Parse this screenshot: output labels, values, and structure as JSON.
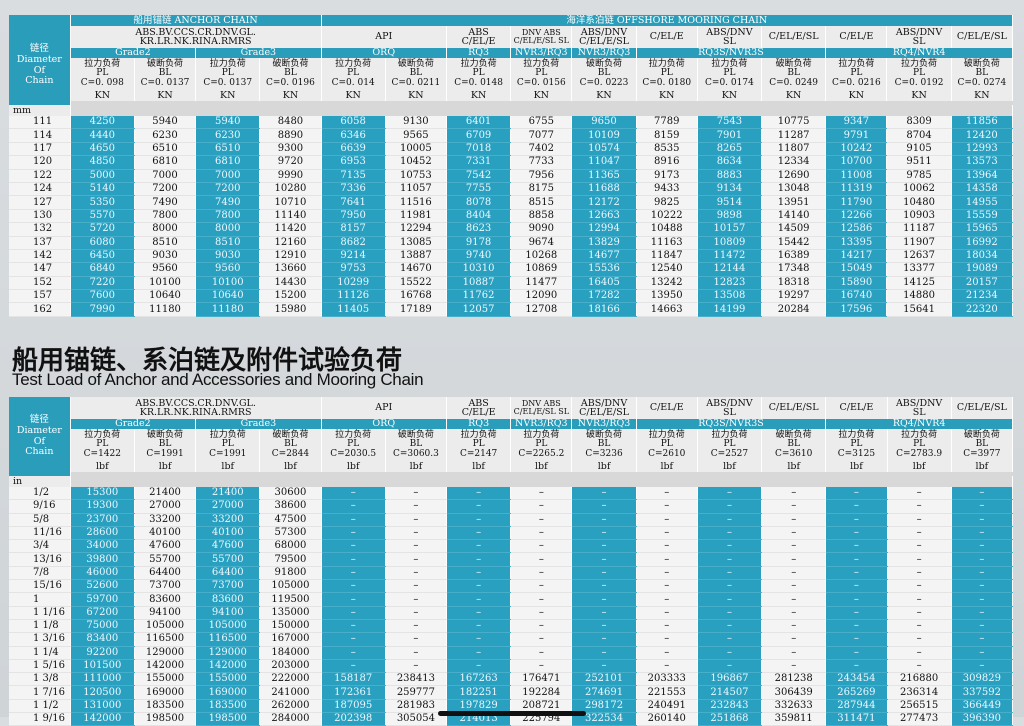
{
  "table1": {
    "section_left": "船用锚链 ANCHOR CHAIN",
    "section_right": "海洋系泊链 OFFSHORE MOORING CHAIN",
    "side_title": [
      "链径",
      "Diameter",
      "Of",
      "Chain"
    ],
    "class_headers": {
      "anchor": [
        "ABS.BV.CCS.CR.DNV.GL.",
        "KR.LR.NK.RINA.RMRS"
      ],
      "api": "API",
      "abs": [
        "ABS",
        "C/EL/E"
      ],
      "dnv_abs": [
        "DNV ABS",
        "C/EL/E/SL SL"
      ],
      "abs_dnv": [
        "ABS/DNV",
        "C/EL/E/SL"
      ],
      "cele": "C/EL/E",
      "abs_dnv_sl": [
        "ABS/DNV",
        "SL"
      ],
      "celesl": "C/EL/E/SL",
      "cele2": "C/EL/E",
      "abs_dnv_sl2": [
        "ABS/DNV",
        "SL"
      ],
      "celesl2": "C/EL/E/SL"
    },
    "grade_labels": [
      "Grade2",
      "Grade3",
      "ORQ",
      "RQ3",
      "NVR3/RQ3",
      "NVR3/RQ3",
      "RQ3S/NVR3S",
      "RQ4/NVR4"
    ],
    "load_labels": [
      [
        "拉力负荷",
        "PL",
        "C=0. 098"
      ],
      [
        "破断负荷",
        "BL",
        "C=0. 0137"
      ],
      [
        "拉力负荷",
        "PL",
        "C=0. 0137"
      ],
      [
        "破断负荷",
        "BL",
        "C=0. 0196"
      ],
      [
        "拉力负荷",
        "PL",
        "C=0. 014"
      ],
      [
        "破断负荷",
        "BL",
        "C=0. 0211"
      ],
      [
        "拉力负荷",
        "PL",
        "C=0. 0148"
      ],
      [
        "拉力负荷",
        "PL",
        "C=0. 0156"
      ],
      [
        "破断负荷",
        "BL",
        "C=0. 0223"
      ],
      [
        "拉力负荷",
        "PL",
        "C=0. 0180"
      ],
      [
        "拉力负荷",
        "PL",
        "C=0. 0174"
      ],
      [
        "破断负荷",
        "BL",
        "C=0. 0249"
      ],
      [
        "拉力负荷",
        "PL",
        "C=0. 0216"
      ],
      [
        "拉力负荷",
        "PL",
        "C=0. 0192"
      ],
      [
        "破断负荷",
        "BL",
        "C=0. 0274"
      ]
    ],
    "unit_label": "mm",
    "units": [
      "KN",
      "KN",
      "KN",
      "KN",
      "KN",
      "KN",
      "KN",
      "KN",
      "KN",
      "KN",
      "KN",
      "KN",
      "KN",
      "KN",
      "KN"
    ],
    "rows": [
      [
        "111",
        "4250",
        "5940",
        "5940",
        "8480",
        "6058",
        "9130",
        "6401",
        "6755",
        "9650",
        "7789",
        "7543",
        "10775",
        "9347",
        "8309",
        "11856"
      ],
      [
        "114",
        "4440",
        "6230",
        "6230",
        "8890",
        "6346",
        "9565",
        "6709",
        "7077",
        "10109",
        "8159",
        "7901",
        "11287",
        "9791",
        "8704",
        "12420"
      ],
      [
        "117",
        "4650",
        "6510",
        "6510",
        "9300",
        "6639",
        "10005",
        "7018",
        "7402",
        "10574",
        "8535",
        "8265",
        "11807",
        "10242",
        "9105",
        "12993"
      ],
      [
        "120",
        "4850",
        "6810",
        "6810",
        "9720",
        "6953",
        "10452",
        "7331",
        "7733",
        "11047",
        "8916",
        "8634",
        "12334",
        "10700",
        "9511",
        "13573"
      ],
      [
        "122",
        "5000",
        "7000",
        "7000",
        "9990",
        "7135",
        "10753",
        "7542",
        "7956",
        "11365",
        "9173",
        "8883",
        "12690",
        "11008",
        "9785",
        "13964"
      ],
      [
        "124",
        "5140",
        "7200",
        "7200",
        "10280",
        "7336",
        "11057",
        "7755",
        "8175",
        "11688",
        "9433",
        "9134",
        "13048",
        "11319",
        "10062",
        "14358"
      ],
      [
        "127",
        "5350",
        "7490",
        "7490",
        "10710",
        "7641",
        "11516",
        "8078",
        "8515",
        "12172",
        "9825",
        "9514",
        "13951",
        "11790",
        "10480",
        "14955"
      ],
      [
        "130",
        "5570",
        "7800",
        "7800",
        "11140",
        "7950",
        "11981",
        "8404",
        "8858",
        "12663",
        "10222",
        "9898",
        "14140",
        "12266",
        "10903",
        "15559"
      ],
      [
        "132",
        "5720",
        "8000",
        "8000",
        "11420",
        "8157",
        "12294",
        "8623",
        "9090",
        "12994",
        "10488",
        "10157",
        "14509",
        "12586",
        "11187",
        "15965"
      ],
      [
        "137",
        "6080",
        "8510",
        "8510",
        "12160",
        "8682",
        "13085",
        "9178",
        "9674",
        "13829",
        "11163",
        "10809",
        "15442",
        "13395",
        "11907",
        "16992"
      ],
      [
        "142",
        "6450",
        "9030",
        "9030",
        "12910",
        "9214",
        "13887",
        "9740",
        "10268",
        "14677",
        "11847",
        "11472",
        "16389",
        "14217",
        "12637",
        "18034"
      ],
      [
        "147",
        "6840",
        "9560",
        "9560",
        "13660",
        "9753",
        "14670",
        "10310",
        "10869",
        "15536",
        "12540",
        "12144",
        "17348",
        "15049",
        "13377",
        "19089"
      ],
      [
        "152",
        "7220",
        "10100",
        "10100",
        "14430",
        "10299",
        "15522",
        "10887",
        "11477",
        "16405",
        "13242",
        "12823",
        "18318",
        "15890",
        "14125",
        "20157"
      ],
      [
        "157",
        "7600",
        "10640",
        "10640",
        "15200",
        "11126",
        "16768",
        "11762",
        "12090",
        "17282",
        "13950",
        "13508",
        "19297",
        "16740",
        "14880",
        "21234"
      ],
      [
        "162",
        "7990",
        "11180",
        "11180",
        "15980",
        "11405",
        "17189",
        "12057",
        "12708",
        "18166",
        "14663",
        "14199",
        "20284",
        "17596",
        "15641",
        "22320"
      ]
    ]
  },
  "heading": {
    "chinese": "船用锚链、系泊链及附件试验负荷",
    "english": "Test Load of Anchor and Accessories and Mooring Chain"
  },
  "table2": {
    "side_title": [
      "链径",
      "Diameter",
      "Of",
      "Chain"
    ],
    "class_headers": {
      "anchor": [
        "ABS.BV.CCS.CR.DNV.GL.",
        "KR.LR.NK.RINA.RMRS"
      ],
      "api": "API",
      "abs": [
        "ABS",
        "C/EL/E"
      ],
      "dnv_abs": [
        "DNV ABS",
        "C/EL/E/SL SL"
      ],
      "abs_dnv": [
        "ABS/DNV",
        "C/EL/E/SL"
      ],
      "cele": "C/EL/E",
      "abs_dnv_sl": [
        "ABS/DNV",
        "SL"
      ],
      "celesl": "C/EL/E/SL",
      "cele2": "C/EL/E",
      "abs_dnv_sl2": [
        "ABS/DNV",
        "SL"
      ],
      "celesl2": "C/EL/E/SL"
    },
    "grade_labels": [
      "Grade2",
      "Grade3",
      "ORQ",
      "RQ3",
      "NVR3/RQ3",
      "NVR3/RQ3",
      "RQ3S/NVR3S",
      "RQ4/NVR4"
    ],
    "load_labels": [
      [
        "拉力负荷",
        "PL",
        "C=1422"
      ],
      [
        "破断负荷",
        "BL",
        "C=1991"
      ],
      [
        "拉力负荷",
        "PL",
        "C=1991"
      ],
      [
        "破断负荷",
        "BL",
        "C=2844"
      ],
      [
        "拉力负荷",
        "PL",
        "C=2030.5"
      ],
      [
        "破断负荷",
        "BL",
        "C=3060.3"
      ],
      [
        "拉力负荷",
        "PL",
        "C=2147"
      ],
      [
        "拉力负荷",
        "PL",
        "C=2265.2"
      ],
      [
        "破断负荷",
        "BL",
        "C=3236"
      ],
      [
        "拉力负荷",
        "PL",
        "C=2610"
      ],
      [
        "拉力负荷",
        "PL",
        "C=2527"
      ],
      [
        "破断负荷",
        "BL",
        "C=3610"
      ],
      [
        "拉力负荷",
        "PL",
        "C=3125"
      ],
      [
        "拉力负荷",
        "PL",
        "C=2783.9"
      ],
      [
        "破断负荷",
        "BL",
        "C=3977"
      ]
    ],
    "unit_label": "in",
    "units": [
      "lbf",
      "lbf",
      "lbf",
      "lbf",
      "lbf",
      "lbf",
      "lbf",
      "lbf",
      "lbf",
      "lbf",
      "lbf",
      "lbf",
      "lbf",
      "lbf",
      "lbf"
    ],
    "rows": [
      [
        "1/2",
        "15300",
        "21400",
        "21400",
        "30600",
        "–",
        "–",
        "–",
        "–",
        "–",
        "–",
        "–",
        "–",
        "–",
        "–",
        "–"
      ],
      [
        "9/16",
        "19300",
        "27000",
        "27000",
        "38600",
        "–",
        "–",
        "–",
        "–",
        "–",
        "–",
        "–",
        "–",
        "–",
        "–",
        "–"
      ],
      [
        "5/8",
        "23700",
        "33200",
        "33200",
        "47500",
        "–",
        "–",
        "–",
        "–",
        "–",
        "–",
        "–",
        "–",
        "–",
        "–",
        "–"
      ],
      [
        "11/16",
        "28600",
        "40100",
        "40100",
        "57300",
        "–",
        "–",
        "–",
        "–",
        "–",
        "–",
        "–",
        "–",
        "–",
        "–",
        "–"
      ],
      [
        "3/4",
        "34000",
        "47600",
        "47600",
        "68000",
        "–",
        "–",
        "–",
        "–",
        "–",
        "–",
        "–",
        "–",
        "–",
        "–",
        "–"
      ],
      [
        "13/16",
        "39800",
        "55700",
        "55700",
        "79500",
        "–",
        "–",
        "–",
        "–",
        "–",
        "–",
        "–",
        "–",
        "–",
        "–",
        "–"
      ],
      [
        "7/8",
        "46000",
        "64400",
        "64400",
        "91800",
        "–",
        "–",
        "–",
        "–",
        "–",
        "–",
        "–",
        "–",
        "–",
        "–",
        "–"
      ],
      [
        "15/16",
        "52600",
        "73700",
        "73700",
        "105000",
        "–",
        "–",
        "–",
        "–",
        "–",
        "–",
        "–",
        "–",
        "–",
        "–",
        "–"
      ],
      [
        "1",
        "59700",
        "83600",
        "83600",
        "119500",
        "–",
        "–",
        "–",
        "–",
        "–",
        "–",
        "–",
        "–",
        "–",
        "–",
        "–"
      ],
      [
        "1 1/16",
        "67200",
        "94100",
        "94100",
        "135000",
        "–",
        "–",
        "–",
        "–",
        "–",
        "–",
        "–",
        "–",
        "–",
        "–",
        "–"
      ],
      [
        "1 1/8",
        "75000",
        "105000",
        "105000",
        "150000",
        "–",
        "–",
        "–",
        "–",
        "–",
        "–",
        "–",
        "–",
        "–",
        "–",
        "–"
      ],
      [
        "1 3/16",
        "83400",
        "116500",
        "116500",
        "167000",
        "–",
        "–",
        "–",
        "–",
        "–",
        "–",
        "–",
        "–",
        "–",
        "–",
        "–"
      ],
      [
        "1 1/4",
        "92200",
        "129000",
        "129000",
        "184000",
        "–",
        "–",
        "–",
        "–",
        "–",
        "–",
        "–",
        "–",
        "–",
        "–",
        "–"
      ],
      [
        "1 5/16",
        "101500",
        "142000",
        "142000",
        "203000",
        "–",
        "–",
        "–",
        "–",
        "–",
        "–",
        "–",
        "–",
        "–",
        "–",
        "–"
      ],
      [
        "1 3/8",
        "111000",
        "155000",
        "155000",
        "222000",
        "158187",
        "238413",
        "167263",
        "176471",
        "252101",
        "203333",
        "196867",
        "281238",
        "243454",
        "216880",
        "309829"
      ],
      [
        "1 7/16",
        "120500",
        "169000",
        "169000",
        "241000",
        "172361",
        "259777",
        "182251",
        "192284",
        "274691",
        "221553",
        "214507",
        "306439",
        "265269",
        "236314",
        "337592"
      ],
      [
        "1 1/2",
        "131000",
        "183500",
        "183500",
        "262000",
        "187095",
        "281983",
        "197829",
        "208721",
        "298172",
        "240491",
        "232843",
        "332633",
        "287944",
        "256515",
        "366449"
      ],
      [
        "1 9/16",
        "142000",
        "198500",
        "198500",
        "284000",
        "202398",
        "305054",
        "214013",
        "225794",
        "322534",
        "260140",
        "251868",
        "359811",
        "311471",
        "277473",
        "396390"
      ]
    ]
  }
}
